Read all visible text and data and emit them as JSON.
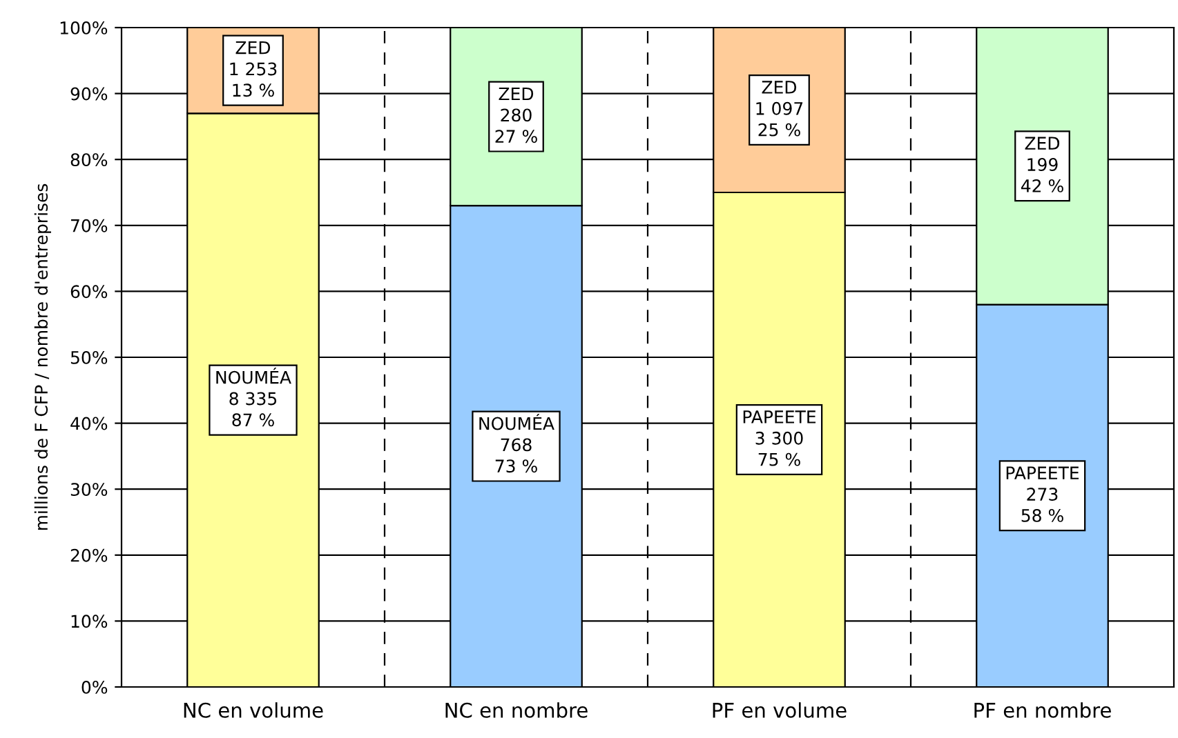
{
  "chart_data": {
    "type": "bar",
    "stacked": true,
    "ylabel": "millions de F CFP / nombre d'entreprises",
    "categories": [
      "NC en volume",
      "NC en nombre",
      "PF en volume",
      "PF en nombre"
    ],
    "series": [
      {
        "colors": [
          "#ffff99",
          "#99ccff",
          "#ffff99",
          "#99ccff"
        ],
        "values": [
          87,
          73,
          75,
          58
        ],
        "value_labels": [
          "NOUMÉA\n8 335\n87 %",
          "NOUMÉA\n768\n73 %",
          "PAPEETE\n3 300\n75 %",
          "PAPEETE\n273\n58 %"
        ]
      },
      {
        "colors": [
          "#ffcc99",
          "#ccffcc",
          "#ffcc99",
          "#ccffcc"
        ],
        "values": [
          13,
          27,
          25,
          42
        ],
        "value_labels": [
          "ZED\n1 253\n13 %",
          "ZED\n280\n27 %",
          "ZED\n1 097\n25 %",
          "ZED\n199\n42 %"
        ]
      }
    ],
    "ylim": [
      0,
      100
    ],
    "yticks": [
      {
        "value": 0,
        "label": "0%"
      },
      {
        "value": 10,
        "label": "10%"
      },
      {
        "value": 20,
        "label": "20%"
      },
      {
        "value": 30,
        "label": "30%"
      },
      {
        "value": 40,
        "label": "40%"
      },
      {
        "value": 50,
        "label": "50%"
      },
      {
        "value": 60,
        "label": "60%"
      },
      {
        "value": 70,
        "label": "70%"
      },
      {
        "value": 80,
        "label": "80%"
      },
      {
        "value": 90,
        "label": "90%"
      },
      {
        "value": 100,
        "label": "100%"
      }
    ],
    "grid": true,
    "legend": false
  }
}
